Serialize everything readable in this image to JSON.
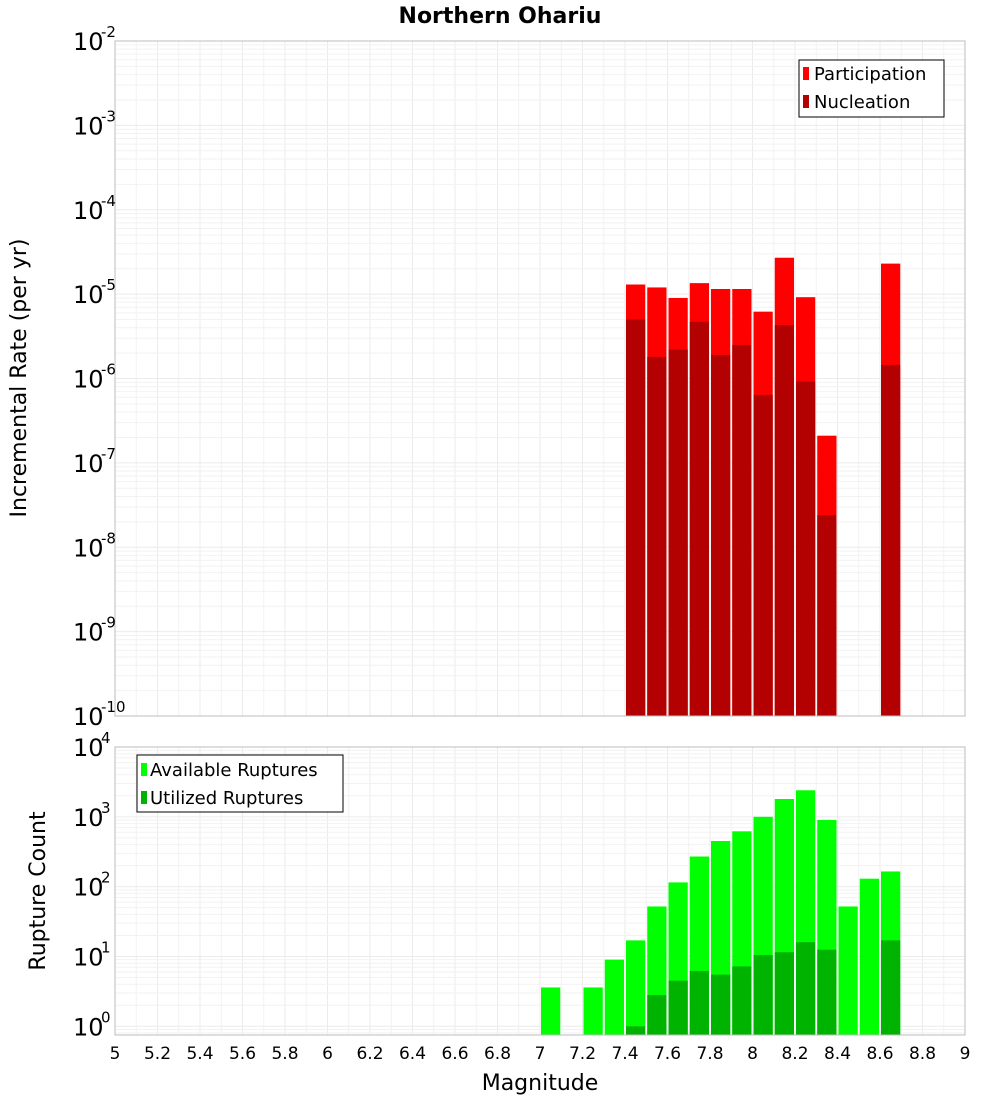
{
  "chart_data": [
    {
      "type": "bar",
      "title": "Northern Ohariu",
      "xlabel": "",
      "ylabel": "Incremental Rate (per yr)",
      "y_scale": "log",
      "ylim": [
        1e-10,
        0.01
      ],
      "y_ticks": [
        {
          "base": "10",
          "exp": "-10",
          "value": 1e-10
        },
        {
          "base": "10",
          "exp": "-9",
          "value": 1e-09
        },
        {
          "base": "10",
          "exp": "-8",
          "value": 1e-08
        },
        {
          "base": "10",
          "exp": "-7",
          "value": 1e-07
        },
        {
          "base": "10",
          "exp": "-6",
          "value": 1e-06
        },
        {
          "base": "10",
          "exp": "-5",
          "value": 1e-05
        },
        {
          "base": "10",
          "exp": "-4",
          "value": 0.0001
        },
        {
          "base": "10",
          "exp": "-3",
          "value": 0.001
        },
        {
          "base": "10",
          "exp": "-2",
          "value": 0.01
        }
      ],
      "legend_position": "top-right",
      "grid": true,
      "x": [
        7.45,
        7.55,
        7.65,
        7.75,
        7.85,
        7.95,
        8.05,
        8.15,
        8.25,
        8.35,
        8.65
      ],
      "series": [
        {
          "name": "Participation",
          "color": "#ff0000",
          "values": [
            1.3e-05,
            1.2e-05,
            9e-06,
            1.35e-05,
            1.15e-05,
            1.15e-05,
            6.2e-06,
            2.7e-05,
            9.2e-06,
            2.1e-07,
            2.3e-05
          ]
        },
        {
          "name": "Nucleation",
          "color": "#b30000",
          "values": [
            5e-06,
            1.8e-06,
            2.2e-06,
            4.7e-06,
            1.9e-06,
            2.5e-06,
            6.4e-07,
            4.3e-06,
            9.2e-07,
            2.4e-08,
            1.45e-06
          ]
        }
      ]
    },
    {
      "type": "bar",
      "title": "",
      "xlabel": "Magnitude",
      "ylabel": "Rupture Count",
      "y_scale": "log",
      "ylim": [
        0.75,
        10000
      ],
      "y_ticks": [
        {
          "base": "10",
          "exp": "0",
          "value": 1
        },
        {
          "base": "10",
          "exp": "1",
          "value": 10
        },
        {
          "base": "10",
          "exp": "2",
          "value": 100
        },
        {
          "base": "10",
          "exp": "3",
          "value": 1000
        },
        {
          "base": "10",
          "exp": "4",
          "value": 10000
        }
      ],
      "xlim": [
        5,
        9
      ],
      "x_ticks": [
        "5",
        "5.2",
        "5.4",
        "5.6",
        "5.8",
        "6",
        "6.2",
        "6.4",
        "6.6",
        "6.8",
        "7",
        "7.2",
        "7.4",
        "7.6",
        "7.8",
        "8",
        "8.2",
        "8.4",
        "8.6",
        "8.8",
        "9"
      ],
      "legend_position": "top-left",
      "grid": true,
      "series": [
        {
          "name": "Available Ruptures",
          "color": "#00ff00",
          "x": [
            7.05,
            7.25,
            7.35,
            7.45,
            7.55,
            7.65,
            7.75,
            7.85,
            7.95,
            8.05,
            8.15,
            8.25,
            8.35,
            8.45,
            8.55,
            8.65
          ],
          "values": [
            3.6,
            3.6,
            9,
            17,
            52,
            115,
            270,
            450,
            620,
            1000,
            1800,
            2400,
            900,
            52,
            130,
            165
          ]
        },
        {
          "name": "Utilized Ruptures",
          "color": "#00b300",
          "x": [
            7.45,
            7.55,
            7.65,
            7.75,
            7.85,
            7.95,
            8.05,
            8.15,
            8.25,
            8.35,
            8.65
          ],
          "values": [
            1,
            2.8,
            4.5,
            6.2,
            5.5,
            7.2,
            10.5,
            11.5,
            16,
            12.5,
            17
          ]
        }
      ]
    }
  ]
}
